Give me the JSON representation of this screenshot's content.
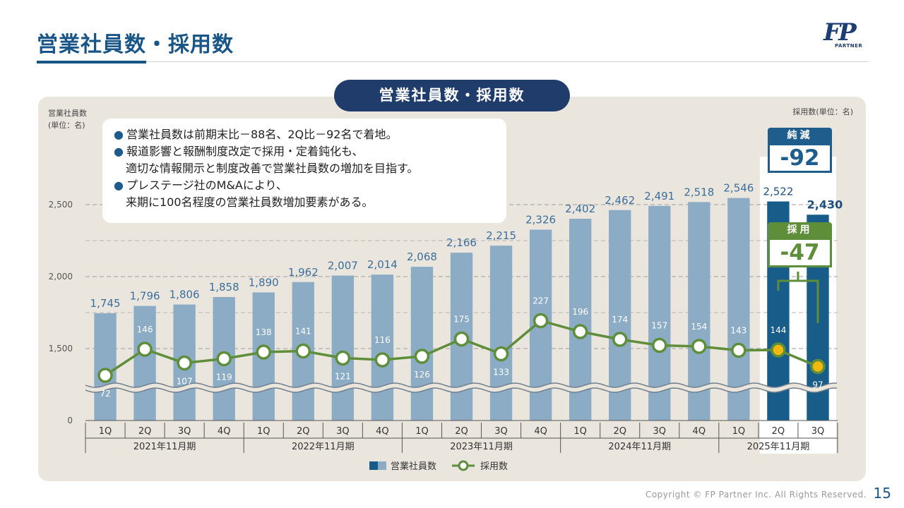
{
  "header": {
    "title": "営業社員数・採用数",
    "logo_text": "FP",
    "logo_sub": "PARTNER"
  },
  "panel": {
    "pill_title": "営業社員数・採用数",
    "left_axis_title_line1": "営業社員数",
    "left_axis_title_line2": "(単位：名)",
    "right_axis_title": "採用数(単位：名)"
  },
  "callout": {
    "bullet": "●",
    "line1": "営業社員数は前期末比－88名、2Q比－92名で着地。",
    "line2": "報道影響と報酬制度改定で採用・定着鈍化も、",
    "line3": "適切な情報開示と制度改善で営業社員数の増加を目指す。",
    "line4": "プレステージ社のM&Aにより、",
    "line5": "来期に100名程度の営業社員数増加要素がある。"
  },
  "badges": {
    "net_caption": "純減",
    "net_value": "-92",
    "hire_caption": "採用",
    "hire_value": "-47"
  },
  "chart_data": {
    "type": "bar",
    "categories": [
      "1Q",
      "2Q",
      "3Q",
      "4Q",
      "1Q",
      "2Q",
      "3Q",
      "4Q",
      "1Q",
      "2Q",
      "3Q",
      "4Q",
      "1Q",
      "2Q",
      "3Q",
      "4Q",
      "1Q",
      "2Q",
      "3Q"
    ],
    "periods": [
      {
        "label": "2021年11月期",
        "quarters": 4
      },
      {
        "label": "2022年11月期",
        "quarters": 4
      },
      {
        "label": "2023年11月期",
        "quarters": 4
      },
      {
        "label": "2024年11月期",
        "quarters": 4
      },
      {
        "label": "2025年11月期",
        "quarters": 3
      }
    ],
    "series": [
      {
        "name": "営業社員数",
        "type": "bar",
        "values": [
          1745,
          1796,
          1806,
          1858,
          1890,
          1962,
          2007,
          2014,
          2068,
          2166,
          2215,
          2326,
          2402,
          2462,
          2491,
          2518,
          2546,
          2522,
          2430
        ],
        "labels": [
          "1,745",
          "1,796",
          "1,806",
          "1,858",
          "1,890",
          "1,962",
          "2,007",
          "2,014",
          "2,068",
          "2,166",
          "2,215",
          "2,326",
          "2,402",
          "2,462",
          "2,491",
          "2,518",
          "2,546",
          "2,522",
          "2,430"
        ]
      },
      {
        "name": "採用数",
        "type": "line",
        "values": [
          72,
          146,
          107,
          119,
          138,
          141,
          121,
          116,
          126,
          175,
          133,
          227,
          196,
          174,
          157,
          154,
          143,
          144,
          97
        ]
      }
    ],
    "y_ticks": [
      "0",
      "1,500",
      "2,000",
      "2,500"
    ],
    "y_tick_values": [
      0,
      1500,
      2000,
      2500
    ],
    "y_axis_break": true,
    "gridlines": true,
    "legend_position": "bottom",
    "colors": {
      "bar": "#8cacc6",
      "bar_highlight": "#185c8a",
      "line": "#5e8e3a",
      "point_highlight": "#f2b90c",
      "net_badge": "#1f5e8c",
      "hire_badge": "#5e8e3a"
    }
  },
  "legend": {
    "bar_label": "営業社員数",
    "line_label": "採用数"
  },
  "footer": {
    "copyright": "Copyright © FP Partner Inc. All Rights Reserved.",
    "page_number": "15"
  }
}
